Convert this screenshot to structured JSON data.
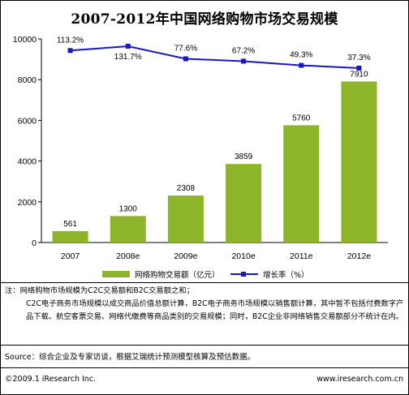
{
  "chart_data": {
    "type": "bar+line",
    "title": "2007-2012年中国网络购物市场交易规模",
    "categories": [
      "2007",
      "2008e",
      "2009e",
      "2010e",
      "2011e",
      "2012e"
    ],
    "series": [
      {
        "name": "网络购物交易额（亿元）",
        "type": "bar",
        "values": [
          561,
          1300,
          2308,
          3859,
          5760,
          7910
        ],
        "color": "#8db52a"
      },
      {
        "name": "增长率（%）",
        "type": "line",
        "values": [
          113.2,
          131.7,
          77.6,
          67.2,
          49.3,
          37.3
        ],
        "labels": [
          "113.2%",
          "131.7%",
          "77.6%",
          "67.2%",
          "49.3%",
          "37.3%"
        ],
        "color": "#1717c8"
      }
    ],
    "y_ticks": [
      "0",
      "2000",
      "4000",
      "6000",
      "8000",
      "10000"
    ],
    "ylim": [
      0,
      10000
    ],
    "grid": false,
    "legend_position": "bottom"
  },
  "notes": [
    "注：网络购物市场规模为C2C交易额和B2C交易额之和；",
    "C2C电子商务市场规模以成交商品价值总额计算，B2C电子商务市场规模以销售额计算，其中暂不包括付费数字产品下载、航空客票交易、网络代缴费等商品类别的交易规模；同时，B2C企业非网络销售交易额部分不统计在内。"
  ],
  "source": "Source：综合企业及专家访谈，根据艾瑞统计预测模型核算及预估数据。",
  "footer": {
    "copyright": "©2009.1 iResearch Inc.",
    "website": "www.iresearch.com.cn"
  }
}
